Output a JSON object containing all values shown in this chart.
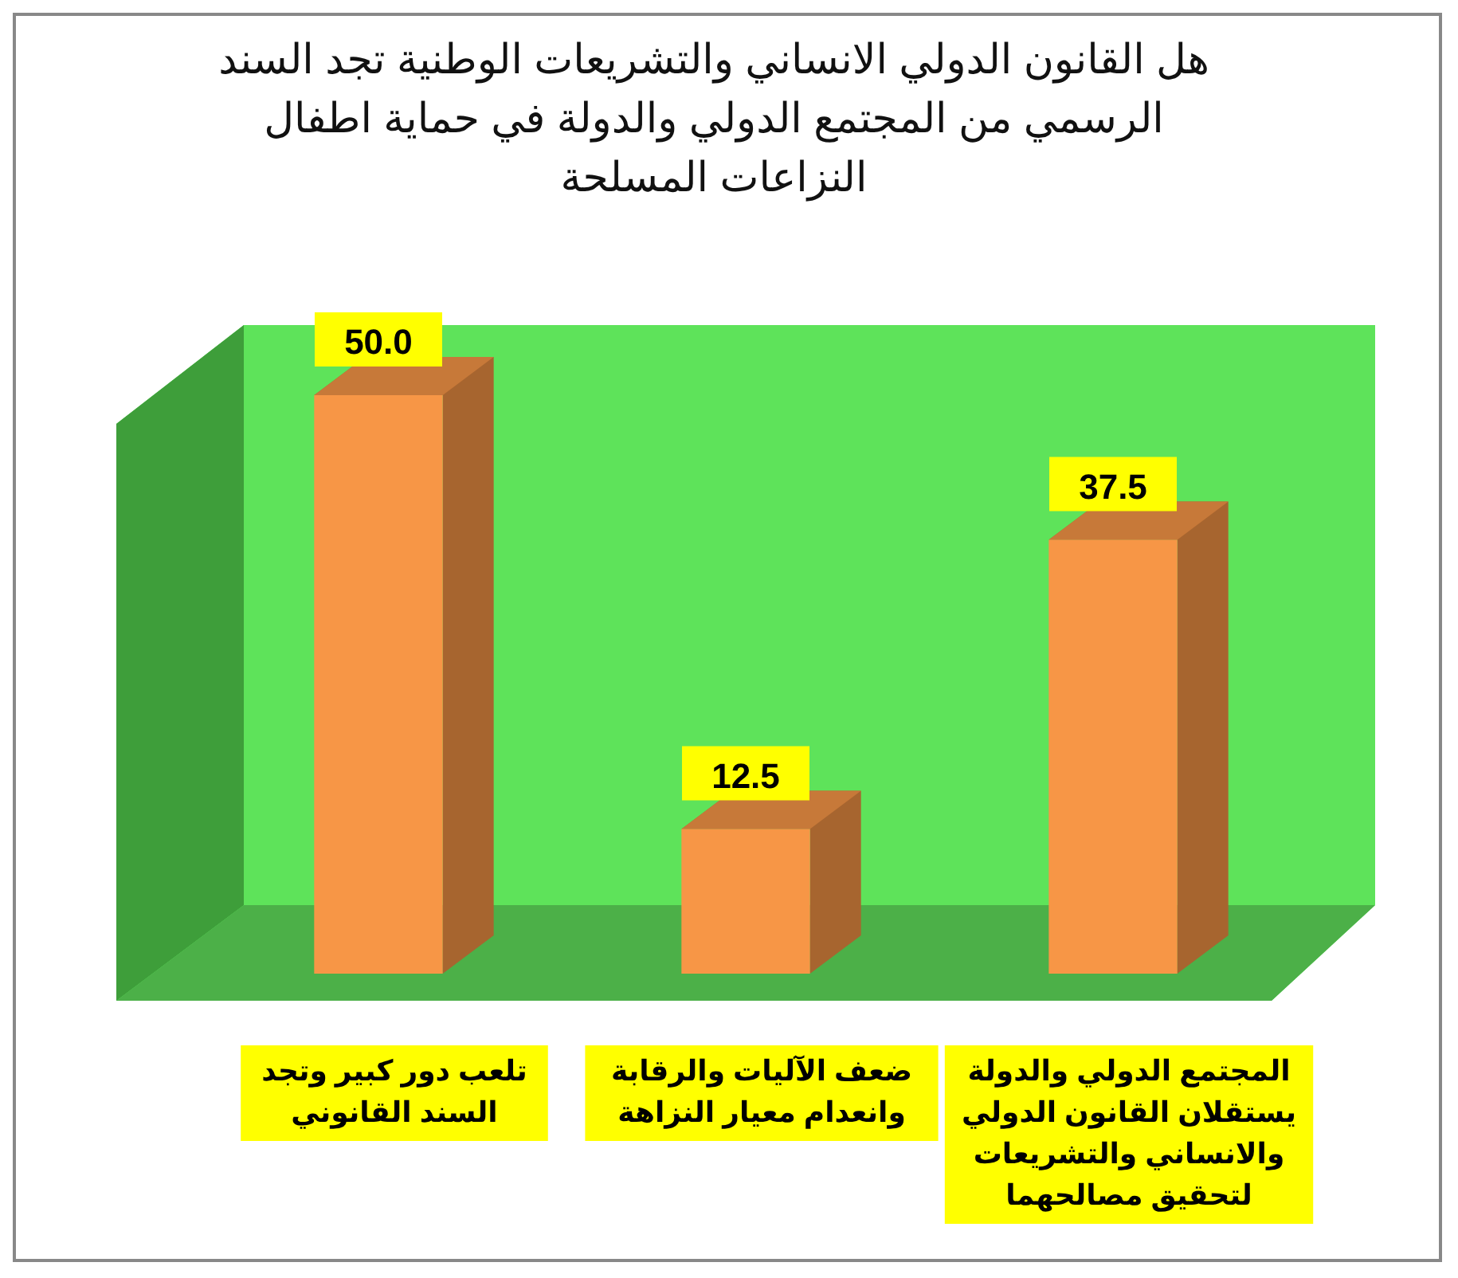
{
  "chart_data": {
    "type": "bar",
    "title": "هل القانون الدولي الانساني والتشريعات الوطنية تجد السند الرسمي من المجتمع الدولي والدولة في حماية اطفال النزاعات المسلحة",
    "categories": [
      "تلعب دور كبير وتجد السند القانوني",
      "ضعف الآليات والرقابة وانعدام معيار النزاهة",
      "المجتمع الدولي والدولة يستقلان القانون الدولي والانساني والتشريعات لتحقيق مصالحهما"
    ],
    "values": [
      50.0,
      12.5,
      37.5
    ],
    "value_labels": [
      "50.0",
      "12.5",
      "37.5"
    ],
    "color": "#f79646"
  }
}
